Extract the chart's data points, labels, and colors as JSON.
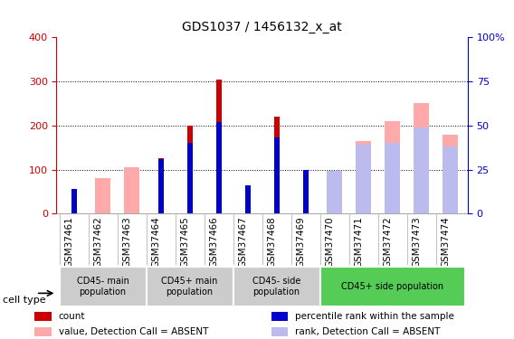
{
  "title": "GDS1037 / 1456132_x_at",
  "samples": [
    "GSM37461",
    "GSM37462",
    "GSM37463",
    "GSM37464",
    "GSM37465",
    "GSM37466",
    "GSM37467",
    "GSM37468",
    "GSM37469",
    "GSM37470",
    "GSM37471",
    "GSM37472",
    "GSM37473",
    "GSM37474"
  ],
  "red_bars": [
    40,
    0,
    0,
    125,
    200,
    305,
    45,
    220,
    95,
    0,
    0,
    0,
    0,
    0
  ],
  "blue_bars_pct": [
    14,
    0,
    0,
    31,
    40,
    52,
    16,
    43,
    25,
    0,
    0,
    0,
    0,
    0
  ],
  "pink_bars": [
    0,
    80,
    105,
    0,
    0,
    0,
    0,
    0,
    0,
    90,
    165,
    210,
    250,
    180
  ],
  "lightblue_pct": [
    0,
    0,
    0,
    0,
    0,
    0,
    0,
    0,
    0,
    24,
    39,
    40,
    49,
    38
  ],
  "ylim_left": [
    0,
    400
  ],
  "ylim_right": [
    0,
    100
  ],
  "yticks_left": [
    0,
    100,
    200,
    300,
    400
  ],
  "yticks_right": [
    0,
    25,
    50,
    75,
    100
  ],
  "cell_groups": [
    {
      "label": "CD45- main\npopulation",
      "start": 0,
      "end": 2,
      "color": "#cccccc"
    },
    {
      "label": "CD45+ main\npopulation",
      "start": 3,
      "end": 5,
      "color": "#cccccc"
    },
    {
      "label": "CD45- side\npopulation",
      "start": 6,
      "end": 8,
      "color": "#cccccc"
    },
    {
      "label": "CD45+ side population",
      "start": 9,
      "end": 13,
      "color": "#55cc55"
    }
  ],
  "red_color": "#cc0000",
  "blue_color": "#0000cc",
  "pink_color": "#ffaaaa",
  "lightblue_color": "#bbbbee",
  "left_axis_color": "#cc0000",
  "right_axis_color": "#0000cc"
}
